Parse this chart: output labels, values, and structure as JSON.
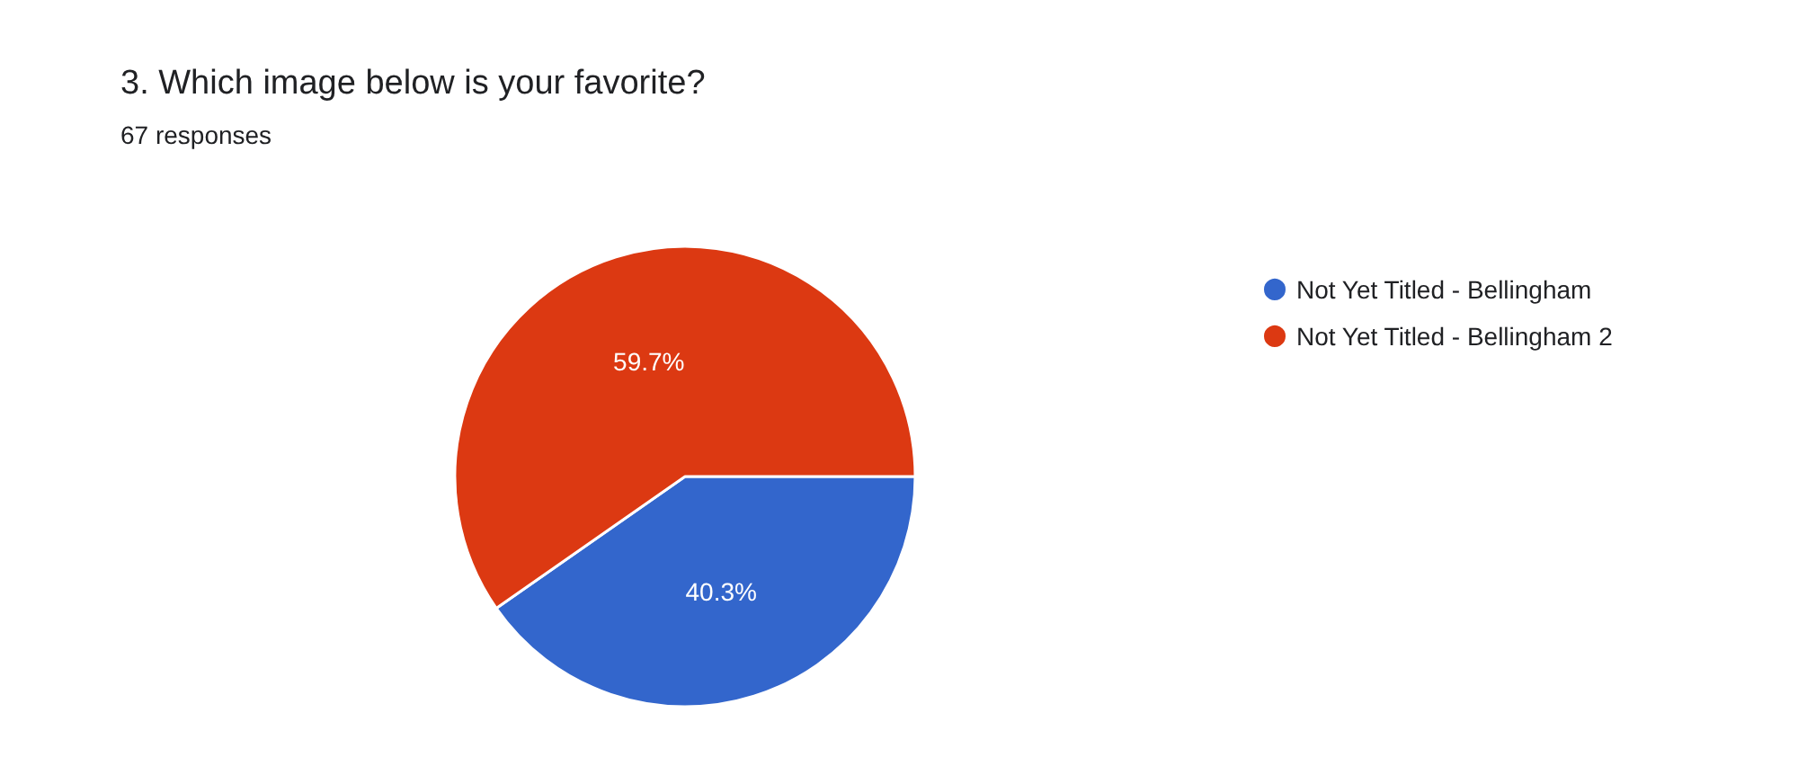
{
  "chart_data": {
    "type": "pie",
    "title": "3. Which image below is your favorite?",
    "subtitle": "67 responses",
    "categories": [
      "Not Yet Titled - Bellingham",
      "Not Yet Titled - Bellingham 2"
    ],
    "values": [
      40.3,
      59.7
    ],
    "colors": [
      "#3366cc",
      "#dc3912"
    ],
    "value_labels": [
      "40.3%",
      "59.7%"
    ],
    "legend": "right"
  }
}
